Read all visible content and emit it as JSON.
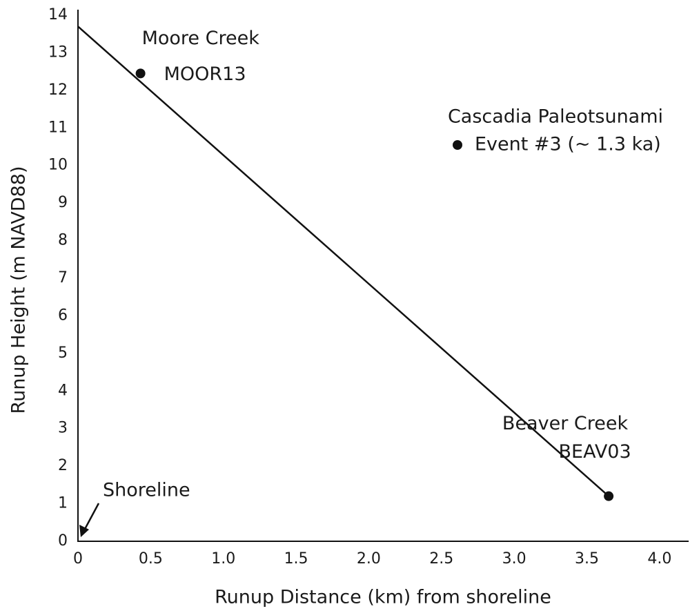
{
  "chart_data": {
    "type": "scatter",
    "xlabel": "Runup Distance (km) from shoreline",
    "ylabel": "Runup Height (m NAVD88)",
    "xlim": [
      0,
      4.2
    ],
    "ylim": [
      0,
      14
    ],
    "xticks": [
      0,
      0.5,
      {
        "value": 1,
        "label": "1.0"
      },
      1.5,
      {
        "value": 2,
        "label": "2.0"
      },
      2.5,
      {
        "value": 3,
        "label": "3.0"
      },
      3.5,
      {
        "value": 4,
        "label": "4.0"
      }
    ],
    "yticks": [
      0,
      1,
      2,
      3,
      4,
      5,
      6,
      7,
      8,
      9,
      10,
      11,
      12,
      13,
      14
    ],
    "series": [
      {
        "name": [
          "Cascadia Paleotsunami",
          "Event #3 (~ 1.3 ka)"
        ],
        "color": "#111111",
        "x": [
          0.43,
          3.65
        ],
        "values": [
          12.45,
          1.2
        ],
        "point_labels": [
          [
            "Moore Creek",
            "MOOR13"
          ],
          [
            "Beaver Creek",
            "BEAV03"
          ]
        ]
      }
    ],
    "trend_line": {
      "color": "#111111",
      "x": [
        0,
        3.65
      ],
      "values": [
        13.7,
        1.2
      ]
    },
    "annotations": [
      {
        "text": "Shoreline",
        "x": 0,
        "y": 0
      }
    ]
  }
}
